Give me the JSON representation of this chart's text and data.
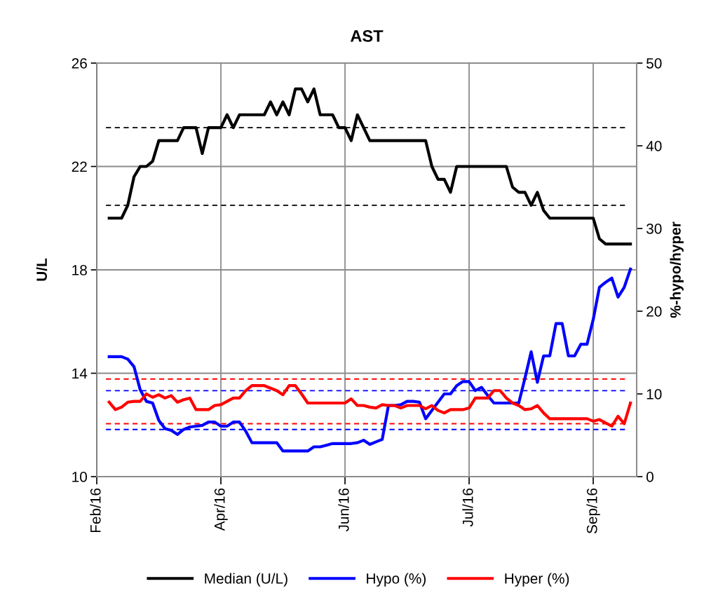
{
  "chart_data": {
    "type": "line",
    "title": "AST",
    "ylabel": "U/L",
    "y2label": "%-hypo/hyper",
    "categories": [
      "Feb/16",
      null,
      null,
      null,
      null,
      null,
      null,
      null,
      null,
      null,
      null,
      null,
      null,
      null,
      null,
      null,
      null,
      null,
      null,
      null,
      "Apr/16",
      null,
      null,
      null,
      null,
      null,
      null,
      null,
      null,
      null,
      null,
      null,
      null,
      null,
      null,
      null,
      null,
      null,
      null,
      null,
      "Jun/16",
      null,
      null,
      null,
      null,
      null,
      null,
      null,
      null,
      null,
      null,
      null,
      null,
      null,
      null,
      null,
      null,
      null,
      null,
      null,
      "Jul/16",
      null,
      null,
      null,
      null,
      null,
      null,
      null,
      null,
      null,
      null,
      null,
      null,
      null,
      null,
      null,
      null,
      null,
      null,
      null,
      "Sep/16",
      null,
      null,
      null,
      null,
      null,
      null,
      null
    ],
    "ylim": [
      10,
      26
    ],
    "yticks": [
      10,
      14,
      18,
      22,
      26
    ],
    "y2lim": [
      0,
      50
    ],
    "y2ticks": [
      0,
      10,
      20,
      30,
      40,
      50
    ],
    "grid": true,
    "legend": "bottom",
    "marker": "none",
    "line_style": "solid",
    "series": [
      {
        "name": "Median (U/L)",
        "color": "#000000",
        "axis": "y",
        "values": [
          null,
          null,
          20,
          20,
          20,
          20.5,
          21.6,
          22,
          22,
          22.2,
          23,
          23,
          23,
          23,
          23.5,
          23.5,
          23.5,
          22.5,
          23.5,
          23.5,
          23.5,
          24,
          23.5,
          24,
          24,
          24,
          24,
          24,
          24.5,
          24,
          24.5,
          24,
          25,
          25,
          24.5,
          25,
          24,
          24,
          24,
          23.5,
          23.5,
          23,
          24,
          23.5,
          23,
          23,
          23,
          23,
          23,
          23,
          23,
          23,
          23,
          23,
          22,
          21.5,
          21.5,
          21,
          22,
          22,
          22,
          22,
          22,
          22,
          22,
          22,
          22,
          21.2,
          21,
          21,
          20.5,
          21,
          20.3,
          20,
          20,
          20,
          20,
          20,
          20,
          20,
          20,
          19.2,
          19,
          19,
          19,
          19,
          19,
          null
        ]
      },
      {
        "name": "Hypo (%)",
        "color": "#0000ff",
        "axis": "y2",
        "values": [
          null,
          null,
          14.5,
          14.5,
          14.5,
          14.2,
          13.3,
          10.5,
          9.1,
          8.9,
          6.8,
          5.8,
          5.6,
          5.1,
          5.7,
          6.0,
          6.1,
          6.2,
          6.6,
          6.6,
          6.1,
          6.1,
          6.6,
          6.6,
          5.5,
          4.1,
          4.1,
          4.1,
          4.1,
          4.1,
          3.1,
          3.1,
          3.1,
          3.1,
          3.1,
          3.6,
          3.6,
          3.8,
          4.0,
          4.0,
          4.0,
          4.0,
          4.1,
          4.4,
          3.9,
          4.2,
          4.5,
          8.6,
          8.6,
          8.7,
          9.1,
          9.1,
          9.0,
          7.0,
          8.0,
          9.0,
          10.0,
          10.0,
          11.0,
          11.5,
          11.5,
          10.4,
          10.8,
          9.8,
          8.9,
          8.9,
          8.9,
          8.9,
          8.9,
          11.9,
          15.1,
          11.4,
          14.6,
          14.6,
          18.5,
          18.5,
          14.6,
          14.6,
          16.0,
          16.0,
          19.0,
          22.9,
          23.5,
          24.0,
          21.7,
          22.9,
          25.1,
          null
        ]
      },
      {
        "name": "Hyper (%)",
        "color": "#ff0000",
        "axis": "y2",
        "values": [
          null,
          null,
          9.0,
          8.1,
          8.4,
          9.0,
          9.1,
          9.1,
          10.0,
          9.6,
          9.9,
          9.5,
          9.8,
          9.0,
          9.3,
          9.5,
          8.1,
          8.1,
          8.1,
          8.6,
          8.7,
          9.1,
          9.5,
          9.5,
          10.4,
          11.0,
          11.0,
          11.0,
          10.7,
          10.4,
          9.9,
          11.0,
          11.0,
          10.0,
          8.9,
          8.9,
          8.9,
          8.9,
          8.9,
          8.9,
          8.9,
          9.4,
          8.6,
          8.6,
          8.4,
          8.3,
          8.7,
          8.6,
          8.6,
          8.3,
          8.6,
          8.6,
          8.6,
          8.2,
          8.6,
          8.0,
          7.7,
          8.1,
          8.1,
          8.1,
          8.3,
          9.5,
          9.5,
          9.5,
          10.4,
          10.4,
          9.5,
          8.9,
          8.6,
          8.1,
          8.2,
          8.6,
          7.7,
          7.0,
          7.0,
          7.0,
          7.0,
          7.0,
          7.0,
          7.0,
          6.7,
          6.9,
          6.5,
          6.1,
          7.3,
          6.4,
          8.9,
          null
        ]
      }
    ],
    "ref_lines": [
      {
        "axis": "y",
        "value": 23.5,
        "color": "#000000",
        "line_style": "dashed"
      },
      {
        "axis": "y",
        "value": 20.5,
        "color": "#000000",
        "line_style": "dashed"
      },
      {
        "axis": "y2",
        "value": 11.8,
        "color": "#ff0000",
        "line_style": "dashed"
      },
      {
        "axis": "y2",
        "value": 10.4,
        "color": "#0000ff",
        "line_style": "dashed"
      },
      {
        "axis": "y2",
        "value": 6.4,
        "color": "#ff0000",
        "line_style": "dashed"
      },
      {
        "axis": "y2",
        "value": 5.7,
        "color": "#0000ff",
        "line_style": "dashed"
      }
    ]
  }
}
